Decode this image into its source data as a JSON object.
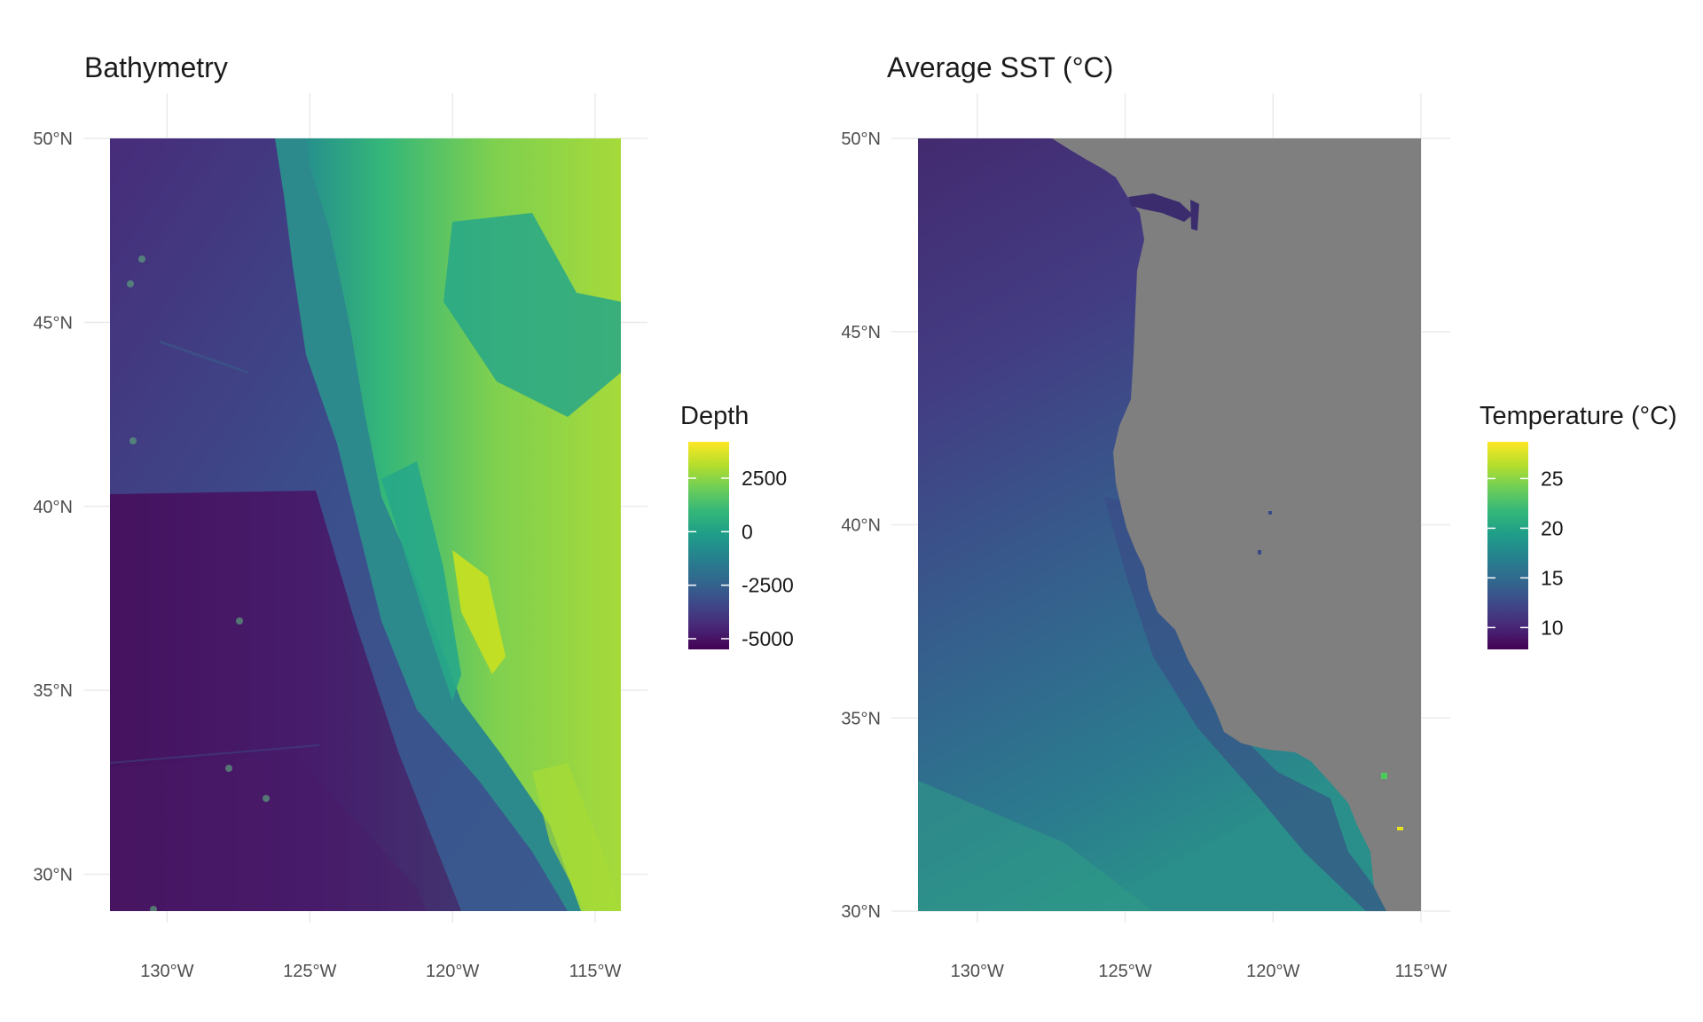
{
  "chart_data": [
    {
      "type": "heatmap",
      "title": "Bathymetry",
      "x_ticks": [
        {
          "value": -130,
          "label": "130°W"
        },
        {
          "value": -125,
          "label": "125°W"
        },
        {
          "value": -120,
          "label": "120°W"
        },
        {
          "value": -115,
          "label": "115°W"
        }
      ],
      "y_ticks": [
        {
          "value": 50,
          "label": "50°N"
        },
        {
          "value": 45,
          "label": "45°N"
        },
        {
          "value": 40,
          "label": "40°N"
        },
        {
          "value": 35,
          "label": "35°N"
        },
        {
          "value": 30,
          "label": "30°N"
        }
      ],
      "xlim": [
        -132,
        -114.1
      ],
      "ylim": [
        29,
        50
      ],
      "grid": true,
      "legend": {
        "title": "Depth",
        "placement": "right",
        "palette": "viridis",
        "range": [
          -5500,
          4200
        ],
        "ticks": [
          {
            "value": 2500,
            "label": "2500"
          },
          {
            "value": 0,
            "label": "0"
          },
          {
            "value": -2500,
            "label": "-2500"
          },
          {
            "value": -5000,
            "label": "-5000"
          }
        ]
      }
    },
    {
      "type": "heatmap",
      "title": "Average SST (°C)",
      "x_ticks": [
        {
          "value": -130,
          "label": "130°W"
        },
        {
          "value": -125,
          "label": "125°W"
        },
        {
          "value": -120,
          "label": "120°W"
        },
        {
          "value": -115,
          "label": "115°W"
        }
      ],
      "y_ticks": [
        {
          "value": 50,
          "label": "50°N"
        },
        {
          "value": 45,
          "label": "45°N"
        },
        {
          "value": 40,
          "label": "40°N"
        },
        {
          "value": 35,
          "label": "35°N"
        },
        {
          "value": 30,
          "label": "30°N"
        }
      ],
      "xlim": [
        -132,
        -115
      ],
      "ylim": [
        30,
        50
      ],
      "grid": true,
      "land_color": "#7f7f7f",
      "legend": {
        "title": "Temperature (°C)",
        "placement": "right",
        "palette": "viridis",
        "range": [
          7.8,
          28.7
        ],
        "ticks": [
          {
            "value": 25,
            "label": "25"
          },
          {
            "value": 20,
            "label": "20"
          },
          {
            "value": 15,
            "label": "15"
          },
          {
            "value": 10,
            "label": "10"
          }
        ]
      }
    }
  ],
  "colors": {
    "viridis": [
      "#440154",
      "#482878",
      "#3e4989",
      "#31688e",
      "#26828e",
      "#1f9e89",
      "#35b779",
      "#6ece58",
      "#b5de2b",
      "#fde725"
    ],
    "grid": "#ebebeb",
    "land": "#7f7f7f"
  }
}
